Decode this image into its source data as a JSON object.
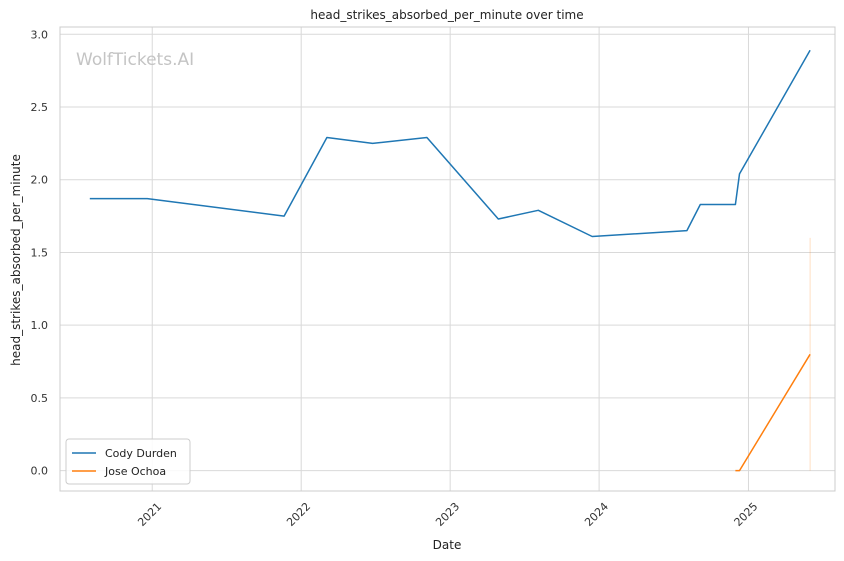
{
  "chart_data": {
    "type": "line",
    "title": "head_strikes_absorbed_per_minute over time",
    "xlabel": "Date",
    "ylabel": "head_strikes_absorbed_per_minute",
    "watermark": "WolfTickets.AI",
    "x_ticks": [
      "2021",
      "2022",
      "2023",
      "2024",
      "2025"
    ],
    "y_ticks": [
      "0.0",
      "0.5",
      "1.0",
      "1.5",
      "2.0",
      "2.5",
      "3.0"
    ],
    "ylim": [
      -0.14,
      3.05
    ],
    "xlim": [
      "2020-05-20",
      "2025-08-01"
    ],
    "grid": true,
    "legend_position": "lower-left",
    "series": [
      {
        "name": "Cody Durden",
        "color": "#1f77b4",
        "x": [
          "2020-08-01",
          "2020-12-20",
          "2021-11-20",
          "2022-03-05",
          "2022-06-25",
          "2022-11-05",
          "2023-04-29",
          "2023-08-05",
          "2023-12-15",
          "2024-08-03",
          "2024-09-05",
          "2024-11-30",
          "2024-12-10",
          "2025-06-01"
        ],
        "values": [
          1.87,
          1.87,
          1.75,
          2.29,
          2.25,
          2.29,
          1.73,
          1.79,
          1.61,
          1.65,
          1.83,
          1.83,
          2.04,
          2.89
        ]
      },
      {
        "name": "Jose Ochoa",
        "color": "#ff7f0e",
        "x": [
          "2024-11-30",
          "2024-12-10",
          "2025-06-01"
        ],
        "values": [
          0.0,
          0.0,
          0.8
        ]
      }
    ],
    "faint_band": {
      "color": "#ff7f0e",
      "x": "2025-06-01",
      "y_range": [
        0.0,
        1.6
      ]
    }
  }
}
